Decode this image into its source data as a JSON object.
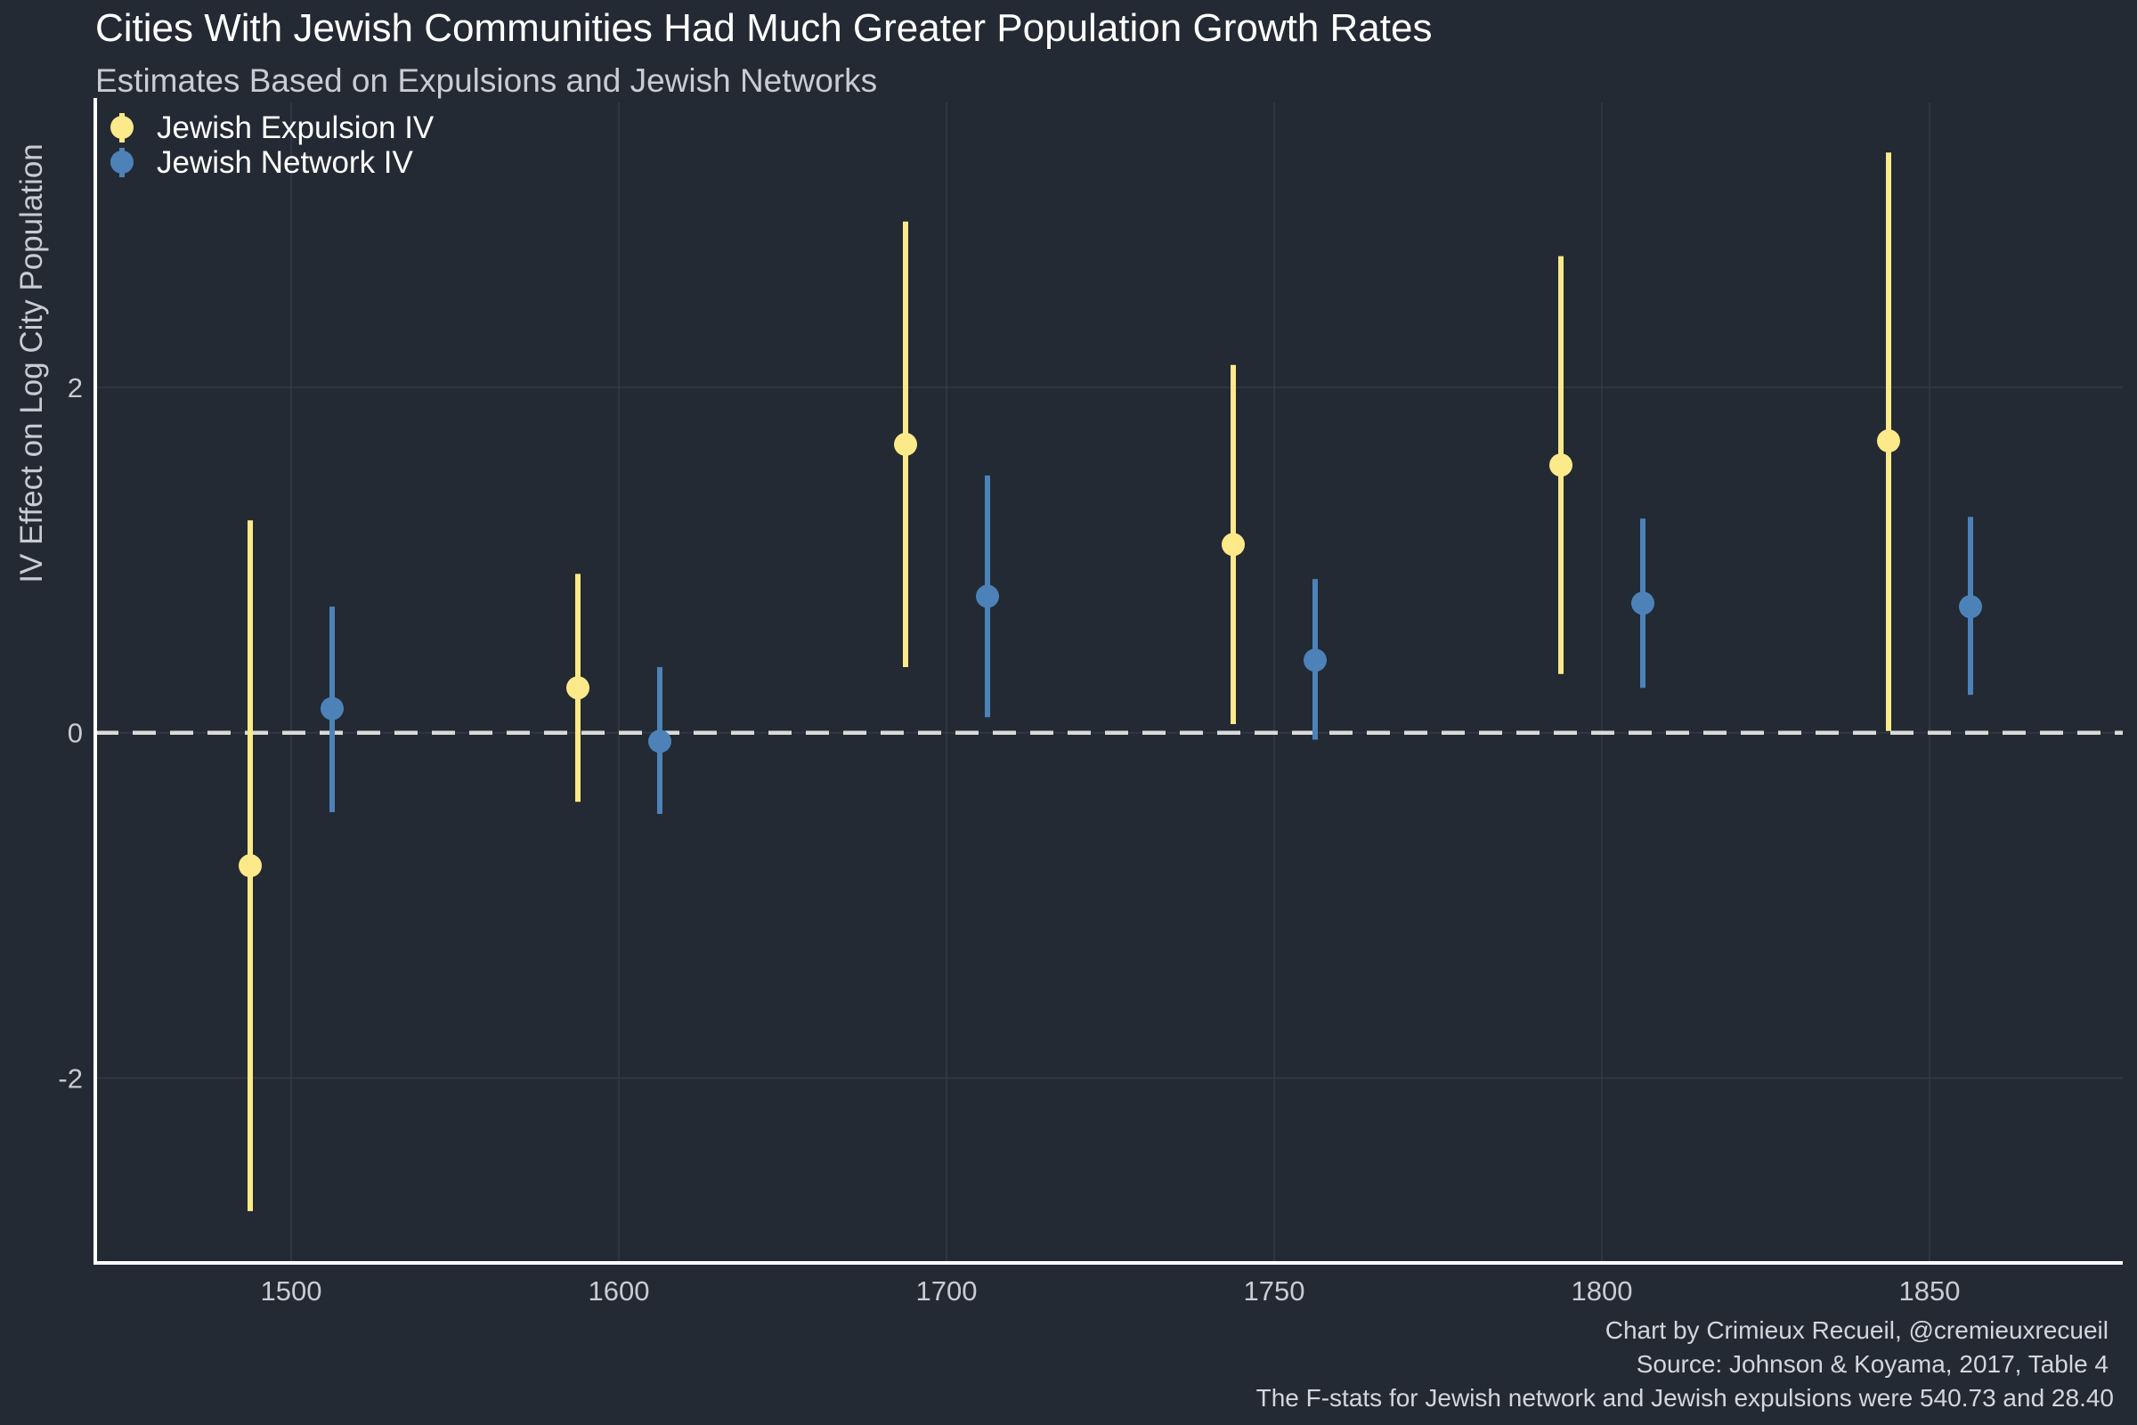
{
  "colors": {
    "background": "#232a33",
    "grid": "#323a45",
    "axis": "#ffffff",
    "zero_line": "#d9d9d9",
    "expulsion": "#fbe98a",
    "network": "#4d82b8"
  },
  "chart_data": {
    "type": "scatter",
    "title": "Cities With Jewish Communities Had Much Greater Population Growth Rates",
    "subtitle": "Estimates Based on Expulsions and Jewish Networks",
    "xlabel": "",
    "ylabel": "IV Effect on Log City Population",
    "x_categories": [
      "1500",
      "1600",
      "1700",
      "1750",
      "1800",
      "1850"
    ],
    "y_ticks": [
      -2,
      0,
      2
    ],
    "y_tick_labels": [
      "-2",
      "0",
      "2"
    ],
    "ylim": [
      -3.07,
      3.65
    ],
    "zero_line": true,
    "grid": true,
    "legend_position": "top-left",
    "series": [
      {
        "name": "Jewish Expulsion IV",
        "color": "#fbe98a",
        "points": [
          {
            "category": "1500",
            "estimate": -0.77,
            "low": -2.77,
            "high": 1.23
          },
          {
            "category": "1600",
            "estimate": 0.26,
            "low": -0.4,
            "high": 0.92
          },
          {
            "category": "1700",
            "estimate": 1.67,
            "low": 0.38,
            "high": 2.96
          },
          {
            "category": "1750",
            "estimate": 1.09,
            "low": 0.05,
            "high": 2.13
          },
          {
            "category": "1800",
            "estimate": 1.55,
            "low": 0.34,
            "high": 2.76
          },
          {
            "category": "1850",
            "estimate": 1.69,
            "low": 0.01,
            "high": 3.36
          }
        ]
      },
      {
        "name": "Jewish Network IV",
        "color": "#4d82b8",
        "points": [
          {
            "category": "1500",
            "estimate": 0.14,
            "low": -0.46,
            "high": 0.73
          },
          {
            "category": "1600",
            "estimate": -0.05,
            "low": -0.47,
            "high": 0.38
          },
          {
            "category": "1700",
            "estimate": 0.79,
            "low": 0.09,
            "high": 1.49
          },
          {
            "category": "1750",
            "estimate": 0.42,
            "low": -0.04,
            "high": 0.89
          },
          {
            "category": "1800",
            "estimate": 0.75,
            "low": 0.26,
            "high": 1.24
          },
          {
            "category": "1850",
            "estimate": 0.73,
            "low": 0.22,
            "high": 1.25
          }
        ]
      }
    ],
    "caption": [
      "Chart by Crimieux Recueil, @cremieuxrecueil",
      "Source: Johnson & Koyama, 2017, Table 4",
      "The F-stats for Jewish network and Jewish expulsions were 540.73 and 28.40"
    ]
  }
}
